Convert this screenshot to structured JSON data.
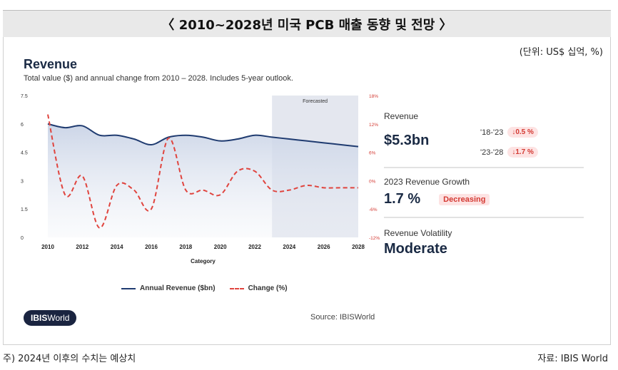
{
  "header": {
    "title": "〈 2010~2028년 미국 PCB 매출 동향 및 전망 〉"
  },
  "unit_note": "(단위: US$ 십억, %)",
  "card": {
    "title": "Revenue",
    "subtitle": "Total value ($) and annual change from 2010 – 2028. Includes 5-year outlook."
  },
  "chart_data": {
    "type": "line",
    "xlabel": "Category",
    "x": [
      2010,
      2011,
      2012,
      2013,
      2014,
      2015,
      2016,
      2017,
      2018,
      2019,
      2020,
      2021,
      2022,
      2023,
      2024,
      2025,
      2026,
      2027,
      2028
    ],
    "x_ticks": [
      "2010",
      "2012",
      "2014",
      "2016",
      "2018",
      "2020",
      "2022",
      "2024",
      "2026",
      "2028"
    ],
    "y_left_ticks": [
      "7.5",
      "6",
      "4.5",
      "3",
      "1.5",
      "0"
    ],
    "y_right_ticks": [
      "18%",
      "12%",
      "6%",
      "0%",
      "-6%",
      "-12%"
    ],
    "ylim_left": [
      0,
      7.5
    ],
    "ylim_right": [
      -12,
      18
    ],
    "forecast_label": "Forecasted",
    "forecast_start": 2023,
    "series": [
      {
        "name": "Annual Revenue ($bn)",
        "axis": "left",
        "color": "#1f3b70",
        "values": [
          6.0,
          5.8,
          5.9,
          5.4,
          5.4,
          5.2,
          4.9,
          5.3,
          5.4,
          5.3,
          5.1,
          5.2,
          5.4,
          5.3,
          5.2,
          5.1,
          5.0,
          4.9,
          4.8
        ]
      },
      {
        "name": "Change (%)",
        "axis": "right",
        "color": "#e0443e",
        "values": [
          14,
          -3,
          1,
          -10,
          -1,
          -2,
          -6,
          9,
          -2,
          -2,
          -3,
          2,
          2,
          -2,
          -2,
          -1,
          -1.5,
          -1.5,
          -1.5
        ]
      }
    ],
    "grid": false,
    "legend": "bottom"
  },
  "legend": {
    "revenue": "Annual Revenue ($bn)",
    "change": "Change (%)"
  },
  "logo": {
    "bold": "IBIS",
    "rest": "World"
  },
  "source": "Source: IBISWorld",
  "stats": {
    "revenue_label": "Revenue",
    "revenue_value": "$5.3bn",
    "period1": "'18-'23",
    "period1_change": "↓0.5 %",
    "period2": "'23-'28",
    "period2_change": "↓1.7 %",
    "growth_label": "2023 Revenue Growth",
    "growth_value": "1.7 %",
    "growth_badge": "Decreasing",
    "volatility_label": "Revenue Volatility",
    "volatility_value": "Moderate"
  },
  "footnote": "주) 2024년 이후의 수치는 예상치",
  "footer_source": "자료: IBIS World"
}
